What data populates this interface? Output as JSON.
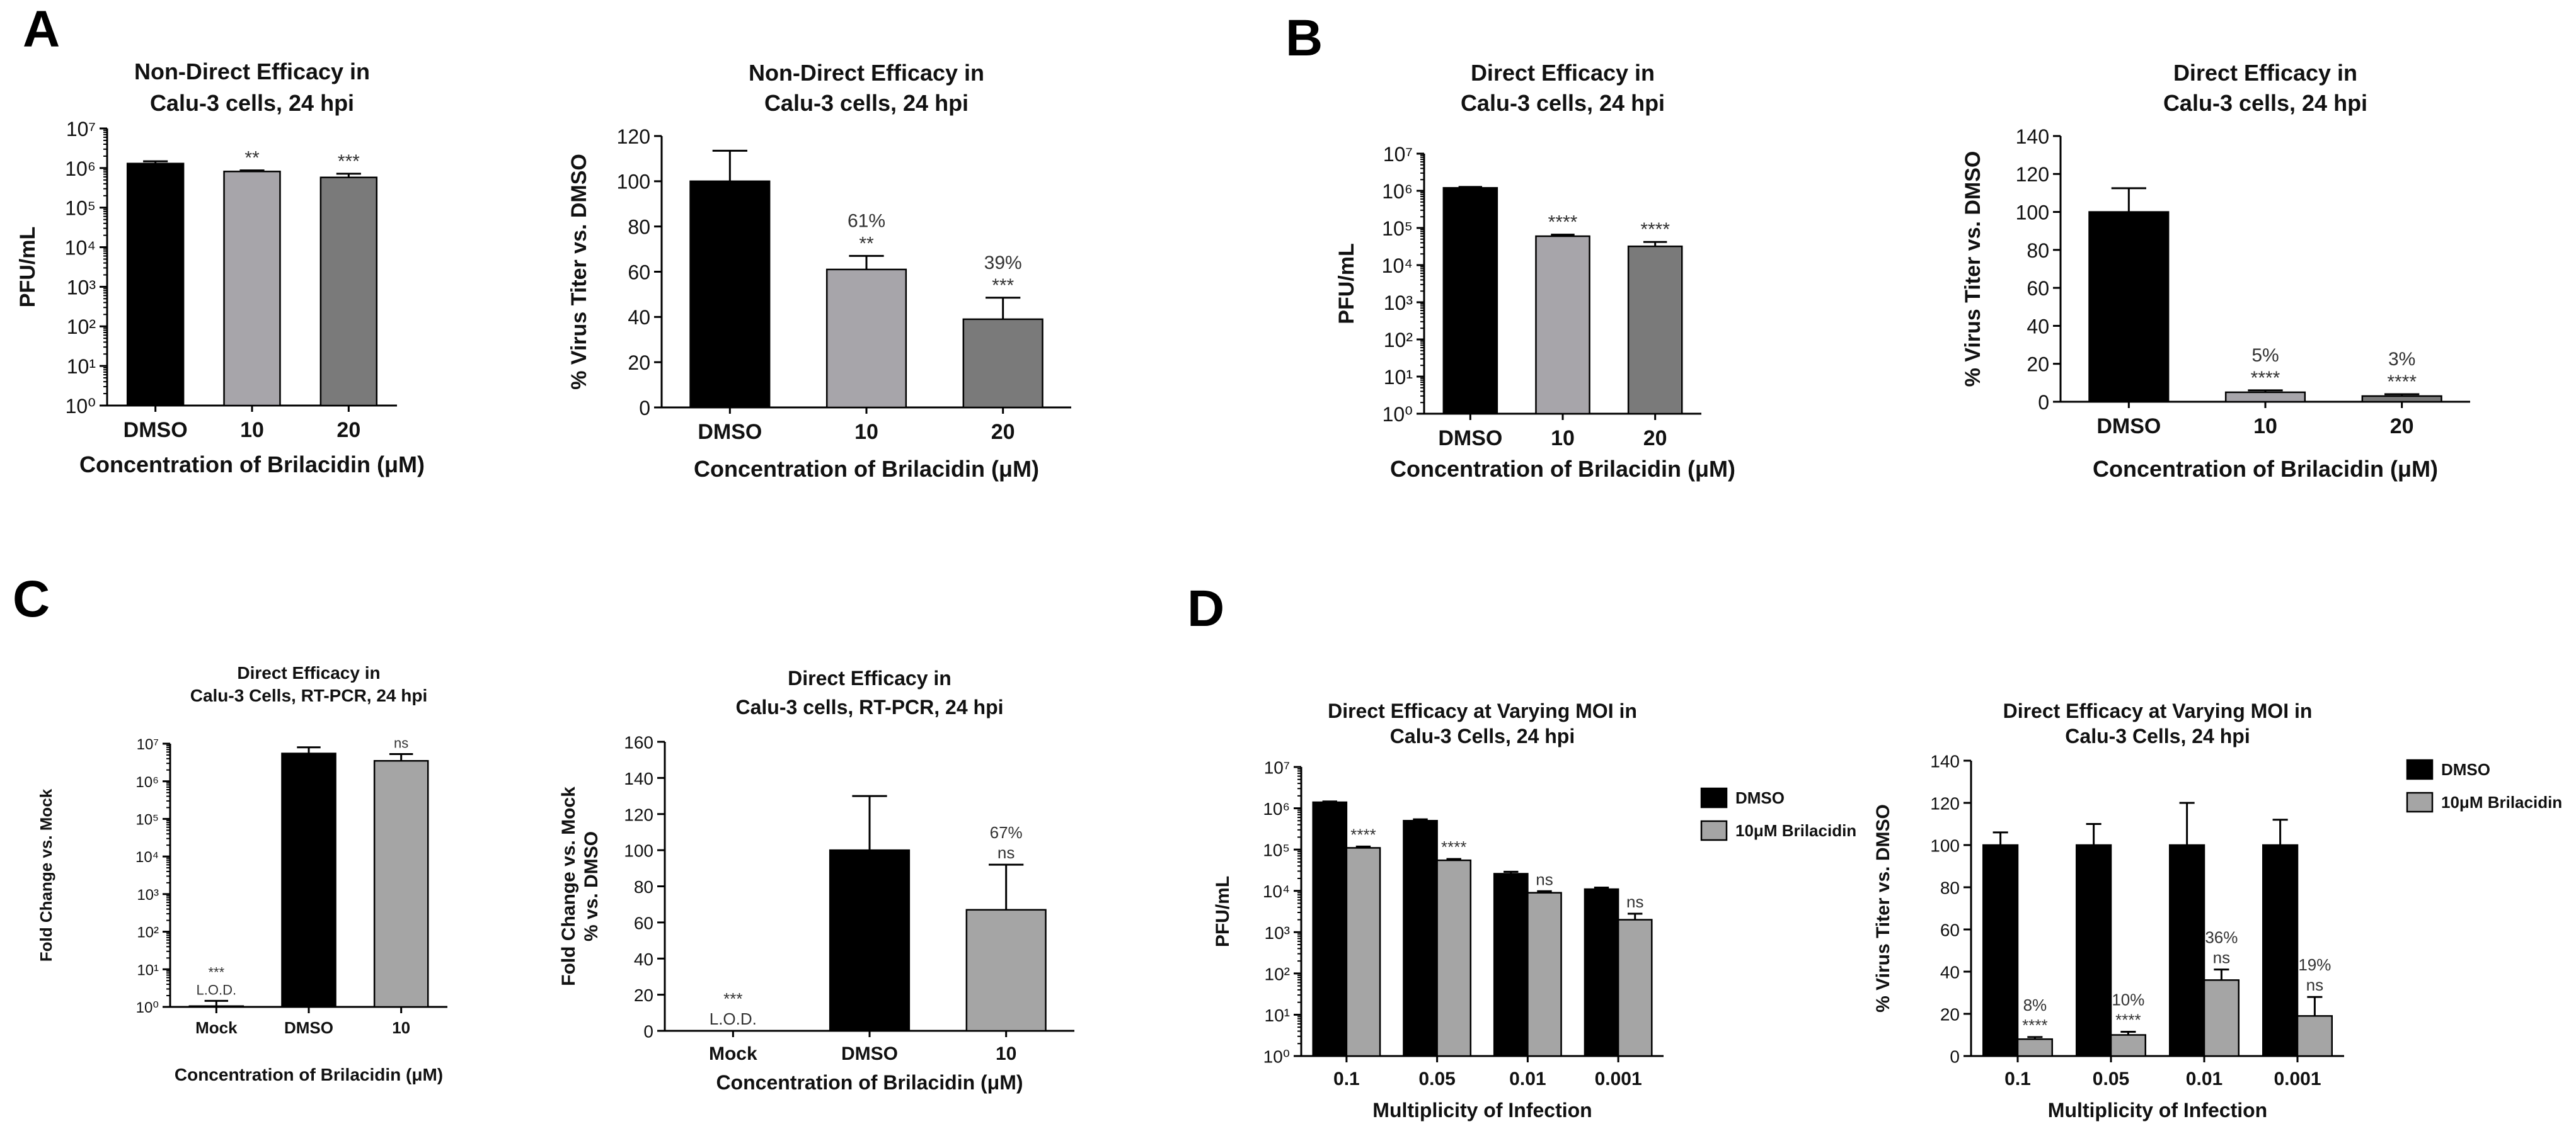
{
  "panels": [
    {
      "letter": "A"
    },
    {
      "letter": "B"
    },
    {
      "letter": "C"
    },
    {
      "letter": "D"
    }
  ],
  "chart_data": [
    {
      "id": "A1",
      "type": "bar",
      "title_lines": [
        "Non-Direct Efficacy in",
        "Calu-3 cells, 24 hpi"
      ],
      "ylabel": "PFU/mL",
      "xlabel": "Concentration of Brilacidin (μM)",
      "yscale": "log",
      "ylim": [
        1,
        10000000
      ],
      "categories": [
        "DMSO",
        "10",
        "20"
      ],
      "values": [
        1300000,
        820000,
        580000
      ],
      "errors": [
        180000,
        50000,
        140000
      ],
      "colors": [
        "#000000",
        "#a7a5aa",
        "#7a7a7a"
      ],
      "annotations": [
        [],
        [
          "**"
        ],
        [
          "***"
        ]
      ]
    },
    {
      "id": "A2",
      "type": "bar",
      "title_lines": [
        "Non-Direct Efficacy in",
        "Calu-3 cells, 24 hpi"
      ],
      "ylabel": "% Virus Titer vs. DMSO",
      "xlabel": "Concentration of Brilacidin (μM)",
      "yscale": "linear",
      "ylim": [
        0,
        120
      ],
      "yticks": [
        0,
        20,
        40,
        60,
        80,
        100,
        120
      ],
      "categories": [
        "DMSO",
        "10",
        "20"
      ],
      "values": [
        100,
        61,
        39
      ],
      "errors": [
        13.5,
        6,
        9.5
      ],
      "colors": [
        "#000000",
        "#a7a5aa",
        "#7a7a7a"
      ],
      "annotations": [
        [],
        [
          "61%",
          "**"
        ],
        [
          "39%",
          "***"
        ]
      ]
    },
    {
      "id": "B1",
      "type": "bar",
      "title_lines": [
        "Direct Efficacy in",
        "Calu-3 cells, 24 hpi"
      ],
      "ylabel": "PFU/mL",
      "xlabel": "Concentration of Brilacidin (μM)",
      "yscale": "log",
      "ylim": [
        1,
        10000000
      ],
      "categories": [
        "DMSO",
        "10",
        "20"
      ],
      "values": [
        1200000,
        60000,
        32000
      ],
      "errors": [
        70000,
        6000,
        10000
      ],
      "colors": [
        "#000000",
        "#a7a5aa",
        "#7a7a7a"
      ],
      "annotations": [
        [],
        [
          "****"
        ],
        [
          "****"
        ]
      ]
    },
    {
      "id": "B2",
      "type": "bar",
      "title_lines": [
        "Direct Efficacy in",
        "Calu-3 cells, 24 hpi"
      ],
      "ylabel": "% Virus Titer vs. DMSO",
      "xlabel": "Concentration of Brilacidin (μM)",
      "yscale": "linear",
      "ylim": [
        0,
        140
      ],
      "yticks": [
        0,
        20,
        40,
        60,
        80,
        100,
        120,
        140
      ],
      "categories": [
        "DMSO",
        "10",
        "20"
      ],
      "values": [
        100,
        5,
        3
      ],
      "errors": [
        12.5,
        1,
        1
      ],
      "colors": [
        "#000000",
        "#a7a5aa",
        "#7a7a7a"
      ],
      "annotations": [
        [],
        [
          "5%",
          "****"
        ],
        [
          "3%",
          "****"
        ]
      ]
    },
    {
      "id": "C1",
      "type": "bar",
      "title_lines": [
        "Direct Efficacy in",
        "Calu-3 Cells, RT-PCR, 24 hpi"
      ],
      "ylabel": "Fold Change vs. Mock",
      "xlabel": "Concentration of Brilacidin (μM)",
      "yscale": "log",
      "ylim": [
        1,
        10000000
      ],
      "categories": [
        "Mock",
        "DMSO",
        "10"
      ],
      "values": [
        1.05,
        5500000,
        3500000
      ],
      "errors": [
        0.4,
        2500000,
        1800000
      ],
      "colors": [
        "#000000",
        "#000000",
        "#a5a5a5"
      ],
      "annotations": [
        [
          "***",
          "L.O.D."
        ],
        [],
        [
          "ns"
        ]
      ]
    },
    {
      "id": "C2",
      "type": "bar",
      "title_lines": [
        "Direct Efficacy in",
        "Calu-3 cells, RT-PCR, 24 hpi"
      ],
      "ylabel_lines": [
        "Fold Change vs. Mock",
        "% vs. DMSO"
      ],
      "xlabel": "Concentration of Brilacidin (μM)",
      "yscale": "linear",
      "ylim": [
        0,
        160
      ],
      "yticks": [
        0,
        20,
        40,
        60,
        80,
        100,
        120,
        140,
        160
      ],
      "categories": [
        "Mock",
        "DMSO",
        "10"
      ],
      "values": [
        0,
        100,
        67
      ],
      "errors": [
        0,
        30,
        25
      ],
      "colors": [
        "#000000",
        "#000000",
        "#a5a5a5"
      ],
      "annotations": [
        [
          "***",
          "L.O.D."
        ],
        [],
        [
          "67%",
          "ns"
        ]
      ]
    },
    {
      "id": "D1",
      "type": "bar",
      "title_lines": [
        "Direct Efficacy at Varying MOI in",
        "Calu-3 Cells, 24 hpi"
      ],
      "ylabel": "PFU/mL",
      "xlabel": "Multiplicity of Infection",
      "yscale": "log",
      "ylim": [
        1,
        10000000
      ],
      "categories": [
        "0.1",
        "0.05",
        "0.01",
        "0.001"
      ],
      "series": [
        {
          "name": "DMSO",
          "color": "#000000",
          "values": [
            1400000,
            500000,
            26000,
            11000
          ],
          "errors": [
            60000,
            40000,
            3000,
            1000
          ]
        },
        {
          "name": "10μM Brilacidin",
          "color": "#a5a5a5",
          "values": [
            110000,
            55000,
            9000,
            2000
          ],
          "errors": [
            8000,
            4000,
            800,
            800
          ]
        }
      ],
      "annotations": [
        [
          "****"
        ],
        [
          "****"
        ],
        [
          "ns"
        ],
        [
          "ns"
        ]
      ],
      "legend": "right"
    },
    {
      "id": "D2",
      "type": "bar",
      "title_lines": [
        "Direct Efficacy at Varying MOI in",
        "Calu-3 Cells, 24 hpi"
      ],
      "ylabel": "% Virus Titer vs. DMSO",
      "xlabel": "Multiplicity of Infection",
      "yscale": "linear",
      "ylim": [
        0,
        140
      ],
      "yticks": [
        0,
        20,
        40,
        60,
        80,
        100,
        120,
        140
      ],
      "categories": [
        "0.1",
        "0.05",
        "0.01",
        "0.001"
      ],
      "series": [
        {
          "name": "DMSO",
          "color": "#000000",
          "values": [
            100,
            100,
            100,
            100
          ],
          "errors": [
            6,
            10,
            20,
            12
          ]
        },
        {
          "name": "10μM Brilacidin",
          "color": "#a5a5a5",
          "values": [
            8,
            10,
            36,
            19
          ],
          "errors": [
            1,
            1.5,
            5,
            9
          ]
        }
      ],
      "annotations": [
        [
          "8%",
          "****"
        ],
        [
          "10%",
          "****"
        ],
        [
          "36%",
          "ns"
        ],
        [
          "19%",
          "ns"
        ]
      ],
      "legend": "top-right"
    }
  ]
}
